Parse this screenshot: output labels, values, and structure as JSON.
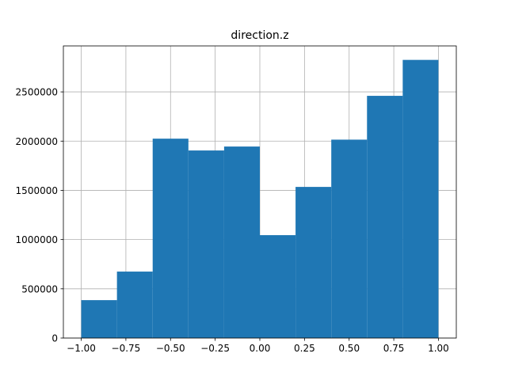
{
  "chart_data": {
    "type": "bar",
    "title": "direction.z",
    "xlabel": "",
    "ylabel": "",
    "bins": [
      {
        "x0": -1.0,
        "x1": -0.8,
        "count": 385000
      },
      {
        "x0": -0.8,
        "x1": -0.6,
        "count": 675000
      },
      {
        "x0": -0.6,
        "x1": -0.4,
        "count": 2025000
      },
      {
        "x0": -0.4,
        "x1": -0.2,
        "count": 1905000
      },
      {
        "x0": -0.2,
        "x1": 0.0,
        "count": 1945000
      },
      {
        "x0": 0.0,
        "x1": 0.2,
        "count": 1045000
      },
      {
        "x0": 0.2,
        "x1": 0.4,
        "count": 1535000
      },
      {
        "x0": 0.4,
        "x1": 0.6,
        "count": 2015000
      },
      {
        "x0": 0.6,
        "x1": 0.8,
        "count": 2460000
      },
      {
        "x0": 0.8,
        "x1": 1.0,
        "count": 2825000
      }
    ],
    "xlim": [
      -1.1,
      1.1
    ],
    "ylim": [
      0,
      2967000
    ],
    "x_ticks": [
      {
        "value": -1.0,
        "label": "−1.00"
      },
      {
        "value": -0.75,
        "label": "−0.75"
      },
      {
        "value": -0.5,
        "label": "−0.50"
      },
      {
        "value": -0.25,
        "label": "−0.25"
      },
      {
        "value": 0.0,
        "label": "0.00"
      },
      {
        "value": 0.25,
        "label": "0.25"
      },
      {
        "value": 0.5,
        "label": "0.50"
      },
      {
        "value": 0.75,
        "label": "0.75"
      },
      {
        "value": 1.0,
        "label": "1.00"
      }
    ],
    "y_ticks": [
      {
        "value": 0,
        "label": "0"
      },
      {
        "value": 500000,
        "label": "500000"
      },
      {
        "value": 1000000,
        "label": "1000000"
      },
      {
        "value": 1500000,
        "label": "1500000"
      },
      {
        "value": 2000000,
        "label": "2000000"
      },
      {
        "value": 2500000,
        "label": "2500000"
      }
    ],
    "grid": true,
    "colors": {
      "bar": "#1f77b4",
      "grid": "#b0b0b0",
      "axis": "#000000"
    }
  }
}
